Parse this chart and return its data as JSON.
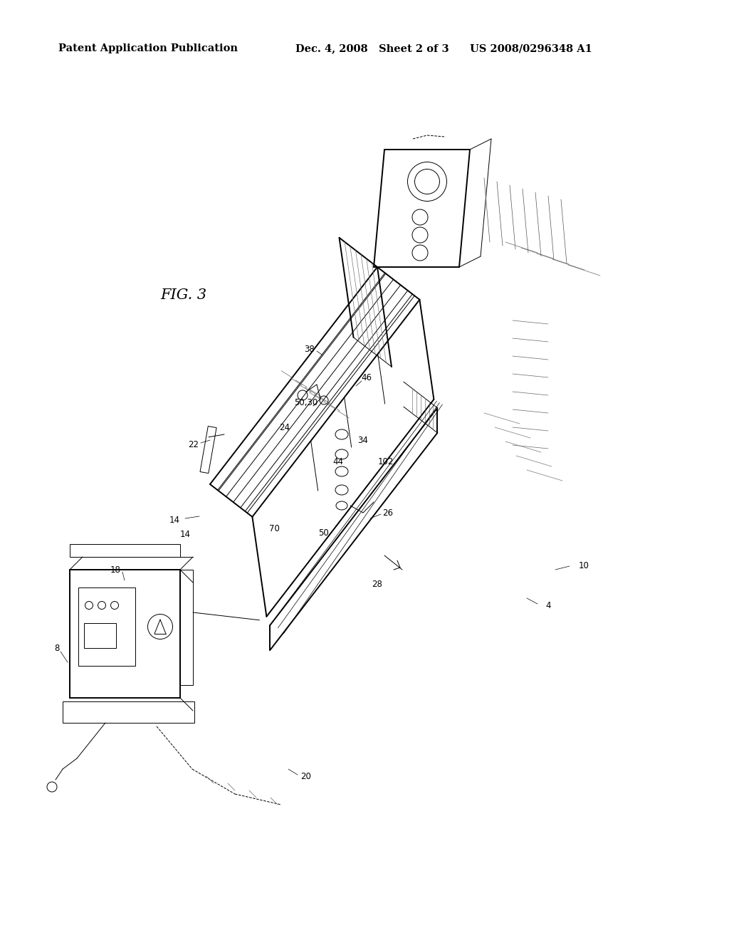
{
  "background_color": "#ffffff",
  "header_left": "Patent Application Publication",
  "header_mid": "Dec. 4, 2008   Sheet 2 of 3",
  "header_right": "US 2008/0296348 A1",
  "fig_label": "FIG. 3",
  "header_fontsize": 10.5,
  "fig_label_fontsize": 15,
  "lw_main": 1.4,
  "lw_thin": 0.7,
  "lw_hatch": 0.5
}
